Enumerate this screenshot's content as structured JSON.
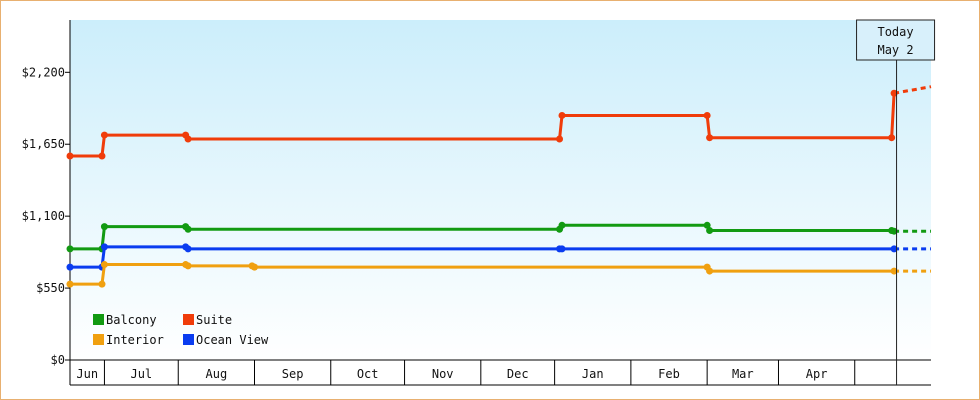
{
  "chart_data": {
    "type": "line",
    "title": "",
    "xlabel": "",
    "ylabel": "",
    "ylim": [
      0,
      2600
    ],
    "xlim": [
      "2023-06-01",
      "2024-05-16"
    ],
    "grid": false,
    "legend_placement": "bottom-left",
    "y_ticks": [
      0,
      550,
      1100,
      1650,
      2200
    ],
    "y_tick_labels": [
      "$0",
      "$550",
      "$1,100",
      "$1,650",
      "$2,200"
    ],
    "x_months": [
      {
        "label": "Jun",
        "start": "2023-06-01",
        "end": "2023-06-15"
      },
      {
        "label": "Jul",
        "start": "2023-06-15",
        "end": "2023-07-15"
      },
      {
        "label": "Aug",
        "start": "2023-07-15",
        "end": "2023-08-15"
      },
      {
        "label": "Sep",
        "start": "2023-08-15",
        "end": "2023-09-15"
      },
      {
        "label": "Oct",
        "start": "2023-09-15",
        "end": "2023-10-15"
      },
      {
        "label": "Nov",
        "start": "2023-10-15",
        "end": "2023-11-15"
      },
      {
        "label": "Dec",
        "start": "2023-11-15",
        "end": "2023-12-15"
      },
      {
        "label": "Jan",
        "start": "2023-12-15",
        "end": "2024-01-15"
      },
      {
        "label": "Feb",
        "start": "2024-01-15",
        "end": "2024-02-15"
      },
      {
        "label": "Mar",
        "start": "2024-02-15",
        "end": "2024-03-15"
      },
      {
        "label": "Apr",
        "start": "2024-03-15",
        "end": "2024-04-15"
      },
      {
        "label": "",
        "start": "2024-04-15",
        "end": "2024-05-16"
      }
    ],
    "today": {
      "label_line1": "Today",
      "label_line2": "May 2",
      "date": "2024-05-02"
    },
    "series": [
      {
        "name": "Suite",
        "color": "#f03c0a",
        "points": [
          [
            "2023-06-01",
            1560
          ],
          [
            "2023-06-14",
            1560
          ],
          [
            "2023-06-15",
            1720
          ],
          [
            "2023-07-18",
            1720
          ],
          [
            "2023-07-19",
            1690
          ],
          [
            "2023-12-17",
            1690
          ],
          [
            "2023-12-18",
            1870
          ],
          [
            "2024-02-15",
            1870
          ],
          [
            "2024-02-16",
            1700
          ],
          [
            "2024-04-30",
            1700
          ],
          [
            "2024-05-01",
            2040
          ]
        ],
        "forecast": [
          [
            "2024-05-01",
            2040
          ],
          [
            "2024-05-16",
            2090
          ]
        ]
      },
      {
        "name": "Balcony",
        "color": "#129a12",
        "points": [
          [
            "2023-06-01",
            850
          ],
          [
            "2023-06-14",
            850
          ],
          [
            "2023-06-15",
            1020
          ],
          [
            "2023-07-18",
            1020
          ],
          [
            "2023-07-19",
            1000
          ],
          [
            "2023-12-17",
            1000
          ],
          [
            "2023-12-18",
            1030
          ],
          [
            "2024-02-15",
            1030
          ],
          [
            "2024-02-16",
            990
          ],
          [
            "2024-04-30",
            990
          ],
          [
            "2024-05-01",
            985
          ]
        ],
        "forecast": [
          [
            "2024-05-01",
            985
          ],
          [
            "2024-05-16",
            985
          ]
        ]
      },
      {
        "name": "Ocean View",
        "color": "#0a3cf0",
        "points": [
          [
            "2023-06-01",
            710
          ],
          [
            "2023-06-14",
            710
          ],
          [
            "2023-06-15",
            865
          ],
          [
            "2023-07-18",
            865
          ],
          [
            "2023-07-19",
            850
          ],
          [
            "2023-12-17",
            850
          ],
          [
            "2023-12-18",
            850
          ],
          [
            "2024-05-01",
            850
          ]
        ],
        "forecast": [
          [
            "2024-05-01",
            850
          ],
          [
            "2024-05-16",
            850
          ]
        ]
      },
      {
        "name": "Interior",
        "color": "#f0a010",
        "points": [
          [
            "2023-06-01",
            580
          ],
          [
            "2023-06-14",
            580
          ],
          [
            "2023-06-15",
            730
          ],
          [
            "2023-07-18",
            730
          ],
          [
            "2023-07-19",
            720
          ],
          [
            "2023-08-14",
            720
          ],
          [
            "2023-08-15",
            710
          ],
          [
            "2024-02-15",
            710
          ],
          [
            "2024-02-16",
            680
          ],
          [
            "2024-05-01",
            680
          ]
        ],
        "forecast": [
          [
            "2024-05-01",
            680
          ],
          [
            "2024-05-16",
            680
          ]
        ]
      }
    ],
    "legend": [
      {
        "name": "Balcony",
        "color": "#129a12"
      },
      {
        "name": "Suite",
        "color": "#f03c0a"
      },
      {
        "name": "Interior",
        "color": "#f0a010"
      },
      {
        "name": "Ocean View",
        "color": "#0a3cf0"
      }
    ]
  }
}
